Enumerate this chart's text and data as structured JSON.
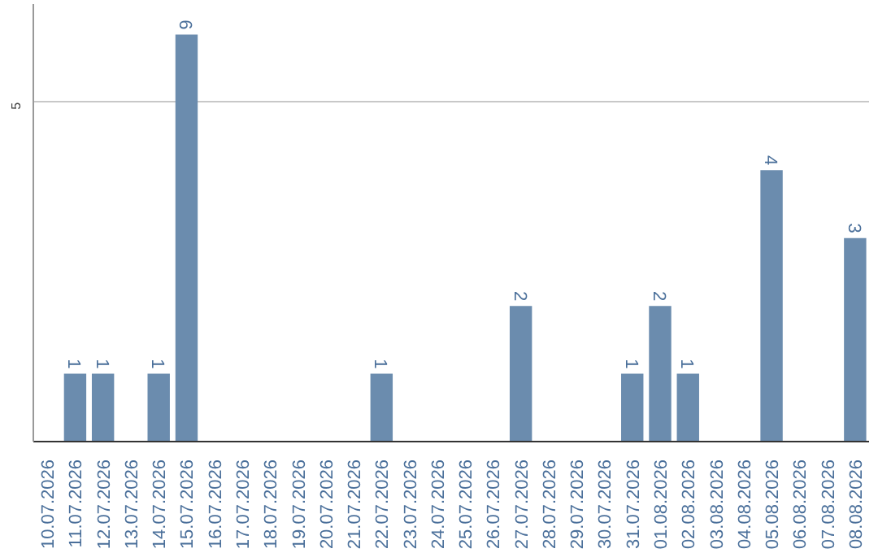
{
  "chart_data": {
    "type": "bar",
    "categories": [
      "10.07.2026",
      "11.07.2026",
      "12.07.2026",
      "13.07.2026",
      "14.07.2026",
      "15.07.2026",
      "16.07.2026",
      "17.07.2026",
      "18.07.2026",
      "19.07.2026",
      "20.07.2026",
      "21.07.2026",
      "22.07.2026",
      "23.07.2026",
      "24.07.2026",
      "25.07.2026",
      "26.07.2026",
      "27.07.2026",
      "28.07.2026",
      "29.07.2026",
      "30.07.2026",
      "31.07.2026",
      "01.08.2026",
      "02.08.2026",
      "03.08.2026",
      "04.08.2026",
      "05.08.2026",
      "06.08.2026",
      "07.08.2026",
      "08.08.2026"
    ],
    "values": [
      0,
      1,
      1,
      0,
      1,
      6,
      0,
      0,
      0,
      0,
      0,
      0,
      1,
      0,
      0,
      0,
      0,
      2,
      0,
      0,
      0,
      1,
      2,
      1,
      0,
      0,
      4,
      0,
      0,
      3
    ],
    "value_labels": [
      null,
      "1",
      "1",
      null,
      "1",
      "6",
      null,
      null,
      null,
      null,
      null,
      null,
      "1",
      null,
      null,
      null,
      null,
      "2",
      null,
      null,
      null,
      "1",
      "2",
      "1",
      null,
      null,
      "4",
      null,
      null,
      "3"
    ],
    "color": "#6b8cae",
    "ylim": [
      0,
      6.45
    ],
    "yticks": [
      5
    ],
    "grid": "y"
  }
}
